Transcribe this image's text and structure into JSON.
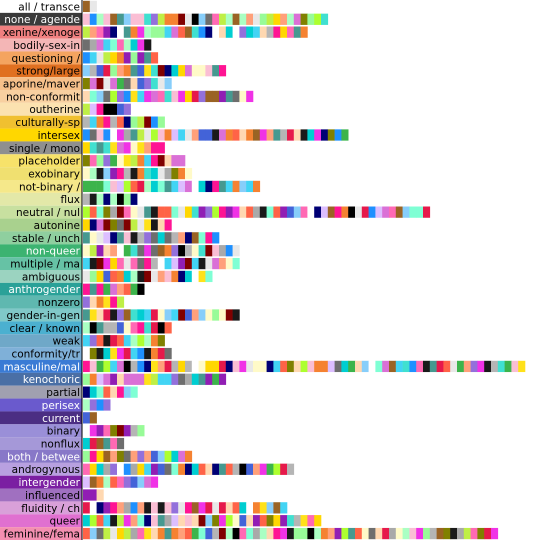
{
  "chart_data": {
    "type": "bar",
    "orientation": "horizontal",
    "grid": false,
    "legend": "none",
    "categories": [
      {
        "label": "all / transce",
        "bg": "#ffffff",
        "fg": "#000000"
      },
      {
        "label": "none / agende",
        "bg": "#3a3a3a",
        "fg": "#ffffff"
      },
      {
        "label": "xenine/xenoge",
        "bg": "#f08080",
        "fg": "#000000"
      },
      {
        "label": "bodily-sex-in",
        "bg": "#f4b6b6",
        "fg": "#000000"
      },
      {
        "label": "questioning /",
        "bg": "#f4a460",
        "fg": "#000000"
      },
      {
        "label": "strong/large",
        "bg": "#e07020",
        "fg": "#000000"
      },
      {
        "label": "aporine/maver",
        "bg": "#f6c08a",
        "fg": "#000000"
      },
      {
        "label": "non-conformit",
        "bg": "#f8d0a0",
        "fg": "#000000"
      },
      {
        "label": "outherine",
        "bg": "#fbe2b0",
        "fg": "#000000"
      },
      {
        "label": "culturally-sp",
        "bg": "#f0c030",
        "fg": "#000000"
      },
      {
        "label": "intersex",
        "bg": "#ffd700",
        "fg": "#000000"
      },
      {
        "label": "single / mono",
        "bg": "#8f8f8f",
        "fg": "#000000"
      },
      {
        "label": "placeholder",
        "bg": "#f7e26a",
        "fg": "#000000"
      },
      {
        "label": "exobinary",
        "bg": "#f0e070",
        "fg": "#000000"
      },
      {
        "label": "not-binary /",
        "bg": "#f5e88a",
        "fg": "#000000"
      },
      {
        "label": "flux",
        "bg": "#e3e8a8",
        "fg": "#000000"
      },
      {
        "label": "neutral / nul",
        "bg": "#c8e0a0",
        "fg": "#000000"
      },
      {
        "label": "autonine",
        "bg": "#a9d18e",
        "fg": "#000000"
      },
      {
        "label": "stable / unch",
        "bg": "#8fcf9f",
        "fg": "#000000"
      },
      {
        "label": "non-queer",
        "bg": "#3cb371",
        "fg": "#ffffff"
      },
      {
        "label": "multiple / ma",
        "bg": "#66c2a5",
        "fg": "#000000"
      },
      {
        "label": "ambiguous",
        "bg": "#9bd3c0",
        "fg": "#000000"
      },
      {
        "label": "anthrogender",
        "bg": "#2aa198",
        "fg": "#ffffff"
      },
      {
        "label": "nonzero",
        "bg": "#5fb8b0",
        "fg": "#000000"
      },
      {
        "label": "gender-in-gen",
        "bg": "#80c8c8",
        "fg": "#000000"
      },
      {
        "label": "clear / known",
        "bg": "#4bb0d0",
        "fg": "#000000"
      },
      {
        "label": "weak",
        "bg": "#6fa8c8",
        "fg": "#000000"
      },
      {
        "label": "conformity/tr",
        "bg": "#7fb0d8",
        "fg": "#000000"
      },
      {
        "label": "masculine/mal",
        "bg": "#3a7bd5",
        "fg": "#ffffff"
      },
      {
        "label": "kenochoric",
        "bg": "#4a6fa5",
        "fg": "#ffffff"
      },
      {
        "label": "partial",
        "bg": "#a0a0b0",
        "fg": "#000000"
      },
      {
        "label": "perisex",
        "bg": "#6a5acd",
        "fg": "#ffffff"
      },
      {
        "label": "current",
        "bg": "#4b2e83",
        "fg": "#ffffff"
      },
      {
        "label": "binary",
        "bg": "#9a8fd8",
        "fg": "#000000"
      },
      {
        "label": "nonflux",
        "bg": "#a598d8",
        "fg": "#000000"
      },
      {
        "label": "both / betwee",
        "bg": "#8878c8",
        "fg": "#ffffff"
      },
      {
        "label": "androgynous",
        "bg": "#b8a0e0",
        "fg": "#000000"
      },
      {
        "label": "intergender",
        "bg": "#7b1fa2",
        "fg": "#ffffff"
      },
      {
        "label": "influenced",
        "bg": "#a070c0",
        "fg": "#000000"
      },
      {
        "label": "fluidity / ch",
        "bg": "#d9a0d9",
        "fg": "#000000"
      },
      {
        "label": "queer",
        "bg": "#e070d0",
        "fg": "#000000"
      },
      {
        "label": "feminine/fema",
        "bg": "#f48fb1",
        "fg": "#000000"
      }
    ],
    "values": [
      2,
      36,
      33,
      10,
      11,
      21,
      13,
      25,
      7,
      12,
      39,
      12,
      15,
      16,
      26,
      9,
      51,
      13,
      20,
      23,
      23,
      19,
      9,
      6,
      23,
      13,
      12,
      13,
      65,
      21,
      8,
      4,
      2,
      9,
      6,
      16,
      31,
      11,
      3,
      30,
      35,
      61
    ],
    "palette": [
      "#000000",
      "#1a1a1a",
      "#6e6e6e",
      "#b5b5b5",
      "#e8e8e8",
      "#ffffff",
      "#e6194b",
      "#f58231",
      "#ffe119",
      "#bfef45",
      "#3cb44b",
      "#42d4f4",
      "#4363d8",
      "#911eb4",
      "#f032e6",
      "#fabed4",
      "#ffd8b1",
      "#fffac8",
      "#aaffc3",
      "#dcbeff",
      "#a9a9a9",
      "#800000",
      "#9a6324",
      "#808000",
      "#469990",
      "#000075",
      "#ff69b4",
      "#7fffd4",
      "#ffa07a",
      "#87cefa",
      "#ffd700",
      "#9370db",
      "#98fb98",
      "#ff6347",
      "#40e0d0",
      "#da70d6",
      "#1e90ff",
      "#adff2f",
      "#ff1493",
      "#00ced1"
    ]
  }
}
